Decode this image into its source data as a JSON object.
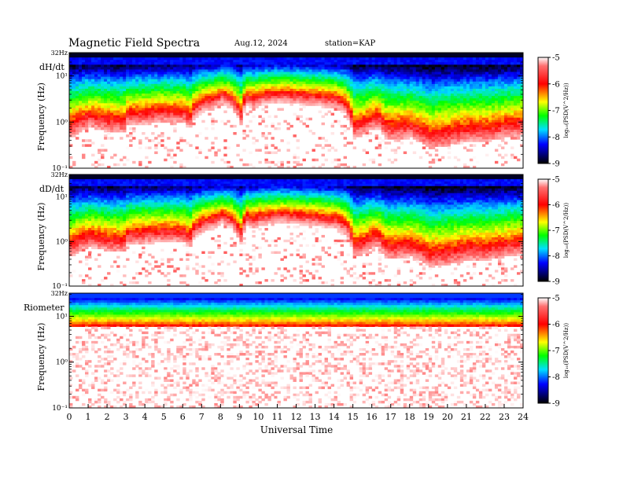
{
  "header": {
    "title": "Magnetic  Field  Spectra",
    "date": "Aug.12, 2024",
    "station": "station=KAP"
  },
  "colors": {
    "spectrum_stops": [
      "#000000",
      "#0000ff",
      "#00e0ff",
      "#00ff00",
      "#ffff00",
      "#ff0000",
      "#ffffff"
    ],
    "nyquist_line": "#00ffff",
    "background": "#ffffff"
  },
  "chart_data": [
    {
      "type": "heatmap",
      "panel_label": "dH/dt",
      "ylabel": "Frequency  (Hz)",
      "y_scale": "log",
      "y_ticks": [
        "10⁻¹",
        "10⁰",
        "10¹"
      ],
      "y_top_label": "32Hz",
      "ylim_hz": [
        0.1,
        32
      ],
      "xlim_ut": [
        0,
        24
      ],
      "noise_floor_hz": [
        {
          "ut": 0,
          "hz": 0.6
        },
        {
          "ut": 1,
          "hz": 1.0
        },
        {
          "ut": 2,
          "hz": 0.8
        },
        {
          "ut": 2.9,
          "hz": 0.75
        },
        {
          "ut": 3.0,
          "hz": 1.1
        },
        {
          "ut": 4,
          "hz": 1.2
        },
        {
          "ut": 5,
          "hz": 1.3
        },
        {
          "ut": 6,
          "hz": 1.25
        },
        {
          "ut": 6.3,
          "hz": 0.9
        },
        {
          "ut": 6.5,
          "hz": 1.5
        },
        {
          "ut": 7,
          "hz": 2.2
        },
        {
          "ut": 7.5,
          "hz": 2.5
        },
        {
          "ut": 8,
          "hz": 3.2
        },
        {
          "ut": 8.5,
          "hz": 2.6
        },
        {
          "ut": 9,
          "hz": 1.2
        },
        {
          "ut": 9.3,
          "hz": 3.0
        },
        {
          "ut": 9.6,
          "hz": 2.5
        },
        {
          "ut": 10,
          "hz": 3.0
        },
        {
          "ut": 11,
          "hz": 3.4
        },
        {
          "ut": 12,
          "hz": 3.2
        },
        {
          "ut": 13,
          "hz": 2.9
        },
        {
          "ut": 14,
          "hz": 2.6
        },
        {
          "ut": 14.5,
          "hz": 2.0
        },
        {
          "ut": 15,
          "hz": 0.6
        },
        {
          "ut": 15.5,
          "hz": 0.7
        },
        {
          "ut": 16,
          "hz": 0.95
        },
        {
          "ut": 16.3,
          "hz": 1.0
        },
        {
          "ut": 16.6,
          "hz": 0.6
        },
        {
          "ut": 17,
          "hz": 0.55
        },
        {
          "ut": 18,
          "hz": 0.6
        },
        {
          "ut": 19,
          "hz": 0.35
        },
        {
          "ut": 20,
          "hz": 0.4
        },
        {
          "ut": 21,
          "hz": 0.5
        },
        {
          "ut": 22,
          "hz": 0.5
        },
        {
          "ut": 23,
          "hz": 0.6
        },
        {
          "ut": 24,
          "hz": 0.7
        }
      ]
    },
    {
      "type": "heatmap",
      "panel_label": "dD/dt",
      "ylabel": "Frequency  (Hz)",
      "y_scale": "log",
      "y_ticks": [
        "10⁻¹",
        "10⁰",
        "10¹"
      ],
      "y_top_label": "32Hz",
      "ylim_hz": [
        0.1,
        32
      ],
      "xlim_ut": [
        0,
        24
      ],
      "noise_floor_hz": [
        {
          "ut": 0,
          "hz": 0.6
        },
        {
          "ut": 1,
          "hz": 1.0
        },
        {
          "ut": 2,
          "hz": 0.8
        },
        {
          "ut": 2.9,
          "hz": 0.75
        },
        {
          "ut": 3.0,
          "hz": 1.1
        },
        {
          "ut": 4,
          "hz": 1.2
        },
        {
          "ut": 5,
          "hz": 1.3
        },
        {
          "ut": 6,
          "hz": 1.25
        },
        {
          "ut": 6.3,
          "hz": 0.9
        },
        {
          "ut": 6.5,
          "hz": 1.5
        },
        {
          "ut": 7,
          "hz": 2.2
        },
        {
          "ut": 7.5,
          "hz": 2.5
        },
        {
          "ut": 8,
          "hz": 3.2
        },
        {
          "ut": 8.5,
          "hz": 2.6
        },
        {
          "ut": 9,
          "hz": 1.2
        },
        {
          "ut": 9.3,
          "hz": 3.0
        },
        {
          "ut": 9.6,
          "hz": 2.5
        },
        {
          "ut": 10,
          "hz": 3.0
        },
        {
          "ut": 11,
          "hz": 3.4
        },
        {
          "ut": 12,
          "hz": 3.2
        },
        {
          "ut": 13,
          "hz": 2.9
        },
        {
          "ut": 14,
          "hz": 2.6
        },
        {
          "ut": 14.5,
          "hz": 2.0
        },
        {
          "ut": 15,
          "hz": 0.6
        },
        {
          "ut": 15.5,
          "hz": 0.7
        },
        {
          "ut": 16,
          "hz": 0.95
        },
        {
          "ut": 16.3,
          "hz": 1.0
        },
        {
          "ut": 16.6,
          "hz": 0.6
        },
        {
          "ut": 17,
          "hz": 0.55
        },
        {
          "ut": 18,
          "hz": 0.6
        },
        {
          "ut": 19,
          "hz": 0.35
        },
        {
          "ut": 20,
          "hz": 0.4
        },
        {
          "ut": 21,
          "hz": 0.5
        },
        {
          "ut": 22,
          "hz": 0.5
        },
        {
          "ut": 23,
          "hz": 0.6
        },
        {
          "ut": 24,
          "hz": 0.7
        }
      ]
    },
    {
      "type": "heatmap",
      "panel_label": "Riometer",
      "ylabel": "Frequency  (Hz)",
      "y_scale": "log",
      "y_ticks": [
        "10⁻¹",
        "10⁰",
        "10¹"
      ],
      "y_top_label": "32Hz",
      "ylim_hz": [
        0.1,
        32
      ],
      "xlim_ut": [
        0,
        24
      ],
      "noise_floor_hz": [
        {
          "ut": 0,
          "hz": 6.0
        },
        {
          "ut": 12,
          "hz": 6.0
        },
        {
          "ut": 24,
          "hz": 6.0
        }
      ]
    }
  ],
  "colorbar": {
    "ticks": [
      "-5",
      "-6",
      "-7",
      "-8",
      "-9"
    ],
    "range": [
      -9,
      -5
    ],
    "label": "log₁₀(PSD(V^2/Hz))"
  },
  "x_axis": {
    "label": "Universal  Time",
    "ticks": [
      "0",
      "1",
      "2",
      "3",
      "4",
      "5",
      "6",
      "7",
      "8",
      "9",
      "10",
      "11",
      "12",
      "13",
      "14",
      "15",
      "16",
      "17",
      "18",
      "19",
      "20",
      "21",
      "22",
      "23",
      "24"
    ]
  }
}
